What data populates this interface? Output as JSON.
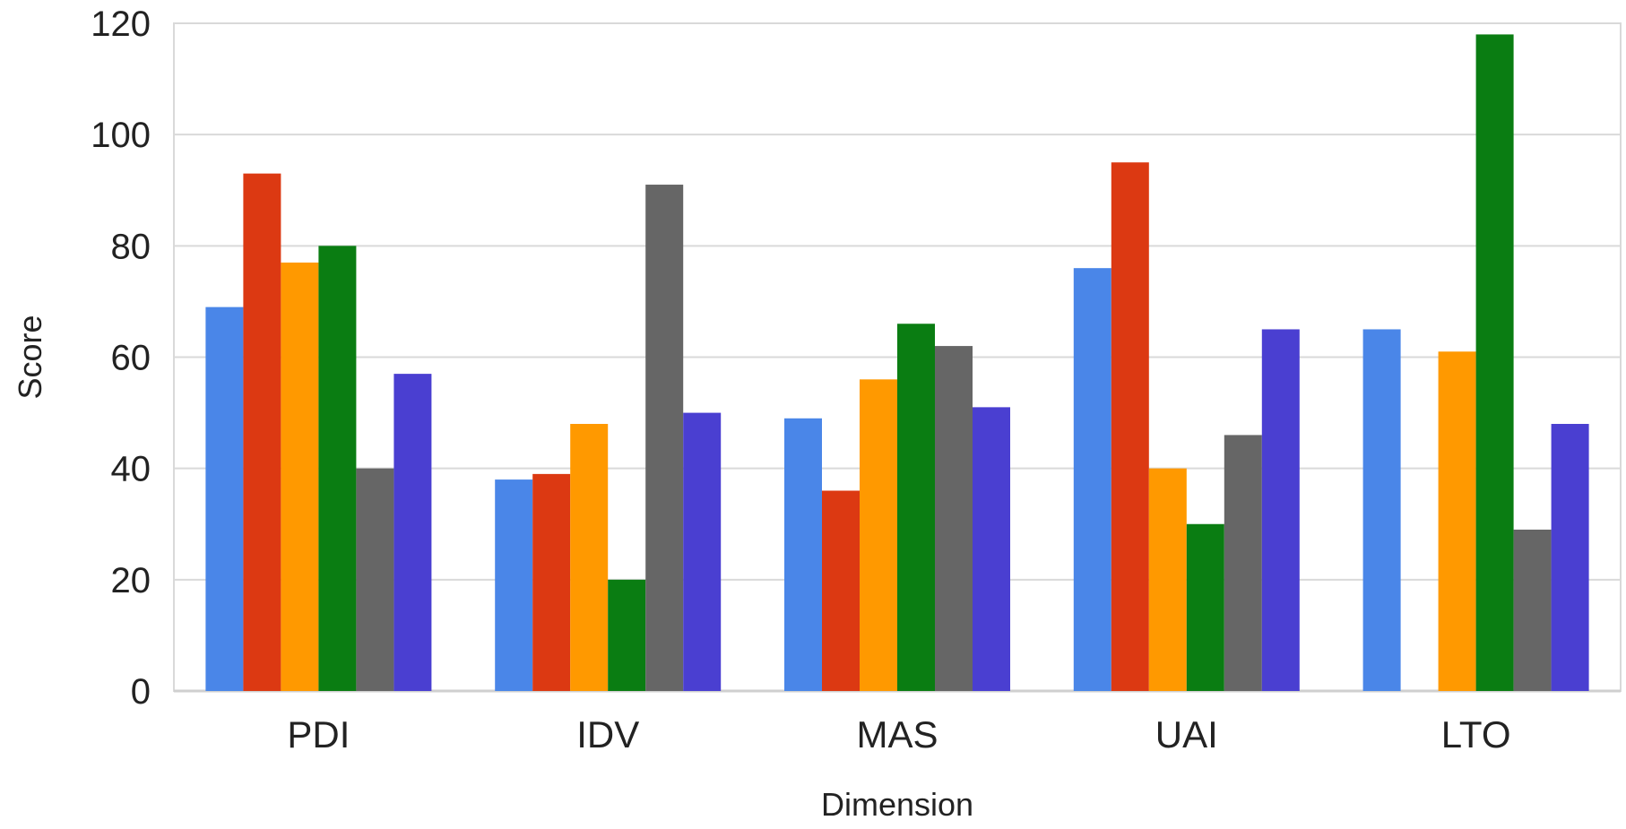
{
  "chart_data": {
    "type": "bar",
    "xlabel": "Dimension",
    "ylabel": "Score",
    "ylim": [
      0,
      120
    ],
    "yticks": [
      0,
      20,
      40,
      60,
      80,
      100,
      120
    ],
    "grid": true,
    "categories": [
      "PDI",
      "IDV",
      "MAS",
      "UAI",
      "LTO"
    ],
    "series": [
      {
        "color": "#4a86e8",
        "values": [
          69,
          38,
          49,
          76,
          65
        ]
      },
      {
        "color": "#dc3912",
        "values": [
          93,
          39,
          36,
          95,
          0
        ]
      },
      {
        "color": "#ff9900",
        "values": [
          77,
          48,
          56,
          40,
          61
        ]
      },
      {
        "color": "#0a7d12",
        "values": [
          80,
          20,
          66,
          30,
          118
        ]
      },
      {
        "color": "#666666",
        "values": [
          40,
          91,
          62,
          46,
          29
        ]
      },
      {
        "color": "#4a3fd1",
        "values": [
          57,
          50,
          51,
          65,
          48
        ]
      }
    ]
  }
}
